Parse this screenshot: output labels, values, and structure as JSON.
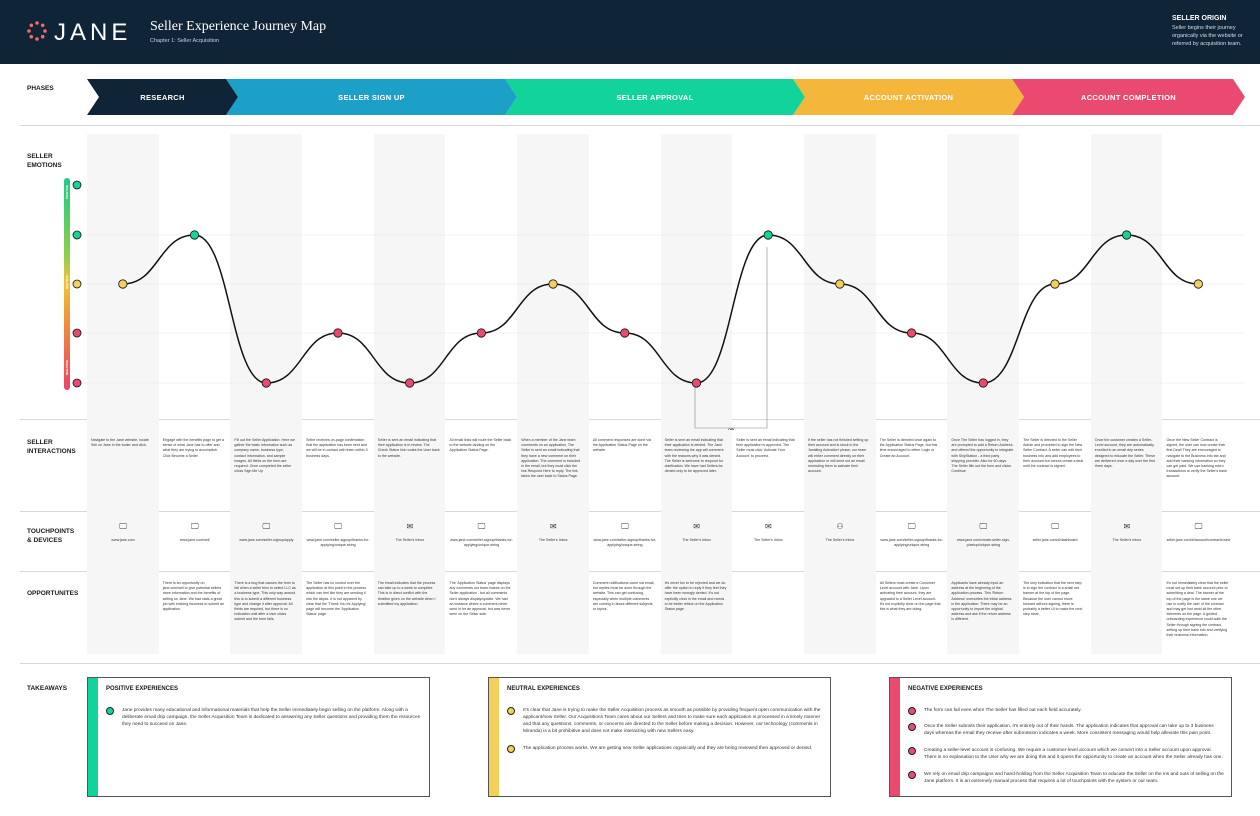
{
  "header": {
    "logo_text": "JANE",
    "title": "Seller Experience Journey Map",
    "subtitle": "Chapter 1: Seller Acquisition",
    "origin_title": "SELLER ORIGIN",
    "origin_text": "Seller begins their journey organically via the website or referred by acquisition team."
  },
  "row_labels": {
    "phases": "PHASES",
    "emotions": "SELLER\nEMOTIONS",
    "interactions": "SELLER\nINTERACTIONS",
    "touchpoints": "TOUCHPOINTS\n& DEVICES",
    "opportunities": "OPPORTUNITES",
    "takeaways": "TAKEAWAYS"
  },
  "phases": [
    {
      "label": "RESEARCH",
      "color": "#0f2437"
    },
    {
      "label": "SELLER SIGN UP",
      "color": "#1da0c8"
    },
    {
      "label": "SELLER APPROVAL",
      "color": "#12d39a"
    },
    {
      "label": "ACCOUNT ACTIVATION",
      "color": "#f5b73b"
    },
    {
      "label": "ACCOUNT COMPLETION",
      "color": "#ea4a70"
    }
  ],
  "emotion_scale": {
    "top": "POSITIVE",
    "middle": "NEUTRAL",
    "bottom": "NEGATIVE"
  },
  "emotions": [
    0,
    1,
    -2,
    -1,
    -2,
    -1,
    0,
    -1,
    -2,
    1,
    0,
    -1,
    -2,
    0,
    1,
    0
  ],
  "or_label": "OR",
  "interactions": [
    "Navigate to the Jane website, locate Sell on Jane in the footer and click.",
    "Engage with the benefits page to get a sense of what Jane has to offer and what they are trying to accomplish. Click Become a Seller",
    "Fill out the Seller Application. Here we gather the basic information such as company name, business type, contact information, and sample images. All fields on the form are required. Once completed the seller clicks Sign Me Up",
    "Seller receives on-page confirmation that the application has been sent and we will be in contact with them within 3 business days.",
    "Seller is sent an email indicating that their application is in review. The Check Status link routes the User back to the website.",
    "All email links will route the Seller back to the website landing on the Application Status Page.",
    "When a member of the Jane team comments on an application, The Seller is sent an email indicating that they have a new comment on their application. The comment is included in the email, but they must click the link Respond Here to reply. The link takes the user back to Status Page.",
    "All comment responses are done via the Application Status Page on the website.",
    "Seller is sent an email indicating that their application is denied. The Jane team reviewing the app will comment with the reasons why it was denied. The Seller is welcome to respond for clarification. We have had Sellers be denied only to be approved later.",
    "Seller is sent an email indicating that their application is approved. The Seller must click 'Activate Your Account' to proceed.",
    "If the seller has not finished setting up their account and is stuck in the 'Awaiting Activation' phase, our team will either comment directly on their application or will send out an email reminding them to activate their account.",
    "The Seller is directed once again to the Application Status Page, but this time encouraged to either Login or Create an Account.",
    "Once The Seller has logged in, they are prompted to add a Return Address and offered the opportunity to integrate with ShipStation - a third party shipping provider. Also for 60 days. The Seller fills out the form and clicks Continue",
    "The Seller is directed to the Seller Admin and prompted to sign the New Seller Contract. A seller can edit their business info and add employees to their account but cannot create a deal until the contract is signed.",
    "Once the customer creates a Seller-Level account, they are automatically enrolled in an email drip series designed to educate the Seller. These are delivered once a day over the first three days.",
    "Once the New Seller Contract is signed, the user can now create their first Deal! They are encouraged to navigate to the Business Info tab and add their banking information so they can get paid. We use banking micro transactions to verify the Seller's bank account."
  ],
  "touchpoints": [
    {
      "icon": "computer-icon",
      "url": "www.jane.com"
    },
    {
      "icon": "computer-icon",
      "url": "www.jane.com/sell"
    },
    {
      "icon": "computer-icon",
      "url": "www.jane.com/seller-signup/apply"
    },
    {
      "icon": "computer-icon",
      "url": "www.jane.com/seller-signup/thanks-for-applying/unique-string"
    },
    {
      "icon": "mail-icon",
      "url": "The Seller's Inbox"
    },
    {
      "icon": "computer-icon",
      "url": "www.jane.com/seller-signup/thanks-for-applying/unique-string"
    },
    {
      "icon": "mail-icon",
      "url": "The Seller's Inbox"
    },
    {
      "icon": "computer-icon",
      "url": "www.jane.com/seller-signup/thanks-for-applying/unique-string"
    },
    {
      "icon": "mail-icon",
      "url": "The Seller's Inbox"
    },
    {
      "icon": "mail-icon",
      "url": "The Seller's Inbox"
    },
    {
      "icon": "person-icon",
      "url": "The Seller's Inbox"
    },
    {
      "icon": "computer-icon",
      "url": "www.jane.com/seller-signup/thanks-for-applying/unique-string"
    },
    {
      "icon": "computer-icon",
      "url": "www.jane.com/create-seller-sign-p/setup/unique-string"
    },
    {
      "icon": "computer-icon",
      "url": "seller.jane.com/#/dashboard"
    },
    {
      "icon": "mail-icon",
      "url": "The Seller's Inbox"
    },
    {
      "icon": "computer-icon",
      "url": "seller.jane.com/#/account/contracts/new"
    }
  ],
  "opportunities": [
    "",
    "There is an opportunity on jane.com/sell to give potential sellers more information and the benefits of selling on Jane. We had stats a great job with enticing business to submit an application.",
    "There is a bug that causes the form to fail when a seller tries to select LLC as a business type. This only way around this is to submit a different business type and change it after approval. All fields are required, but there is no indication until after a user clicks submit and the form fails.",
    "The Seller has no control over the application at this point in the process which can feel like they are sending it into the abyss. It is not apparent by clear that the 'Thank You for Applying' page will become the 'Application Status' page.",
    "The email indicates that the process can take up to a week to complete. This is in direct conflict with the timeline given on the website when I submitted my application.",
    "The 'Application Status' page displays any comments our team makes on the Seller application - but all comments don't always display/update. We had an instance where a comment never went in for an approval, but was never seen on the Seller side.",
    "",
    "Comment notifications come via email, but replies must be done through the website. This can get confusing, especially when multiple comments are coming in about different subjects or topics.",
    "It's never fun to be rejected and we do offer the option to reply if they feel they have been wrongly denied. It's not explicitly clear in the email and needs to be better reflect on the Application Status page.",
    "",
    "",
    "All Sellers must create a Customer Level account with Jane. Upon activating their account, they are upgraded to a Seller Level account. It's not explicitly clear on the page that this is what they are doing.",
    "Applicants have already input an address at the beginning of the application process. This 'Return Address' overwrites the initial address in the application. There may be an opportunity to import the original address and ask if the return address is different.",
    "The only indication that the next step is to sign the contract is a small red banner at the top of the page. Because the user cannot move forward without signing, there is probably a better UI to make the next step clear.",
    "",
    "It's not immediately clear that the seller must set up their bank account prior to submitting a deal. The banner at the top of the page is the same one we use to notify the user of the contract and may get lost amid all the other elements on the page. A guided onboarding experience could walk the Seller through signing the contract, setting up their bank info and verifying their business information."
  ],
  "takeaways": {
    "positive": {
      "title": "POSITIVE EXPERIENCES",
      "color": "#12d39a",
      "items": [
        {
          "icon": "happy-icon",
          "text": "Jane provides many educational and informational materials that help the Seller immediately begin selling on the platform. Along with a deliberate email drip campaign, the Seller Acquisition Team is dedicated to answering any Seller questions and providing them the resources they need to succeed on Jane."
        }
      ]
    },
    "neutral": {
      "title": "NEUTRAL EXPERIENCES",
      "color": "#f5cf5b",
      "items": [
        {
          "icon": "neutral-icon",
          "text": "It's clear that Jane is trying to make the Seller Acquisition process as smooth as possible by providing frequent open communication with the applicant/new Seller. Our Acquisitions Team cares about our Sellers and tries to make sure each application is processed in a timely manner and that any questions, comments, or concerns are directed to the Seller before making a decision. However, our technology (comments in Miranda) is a bit prohibitive and does not make interacting with new Sellers easy."
        },
        {
          "icon": "neutral-icon",
          "text": "The application process works. We are getting new Seller applications organically and they are being reviewed then approved or denied."
        }
      ]
    },
    "negative": {
      "title": "NEGATIVE EXPERIENCES",
      "color": "#ea4a70",
      "items": [
        {
          "icon": "sad-icon",
          "text": "The form can fail even when The Seller has filled out each field accurately."
        },
        {
          "icon": "sad-icon",
          "text": "Once the Seller submits their application, it's entirely out of their hands. The application indicates that approval can take up to 3 business days whereas the email they receive after submission indicates a week. More consistent messaging would help alleviate this pain point."
        },
        {
          "icon": "sad-icon",
          "text": "Creating a seller-level account is confusing. We require a customer-level account which we convert into a Seller account upon approval. There is no explanation to the User why we are doing this and it opens the opportunity to create an account when the Seller already has one."
        },
        {
          "icon": "sad-icon",
          "text": "We rely on email drip campaigns and hand-holding from the Seller Acquisition Team to educate the Seller on the ins and outs of selling on the Jane platform. It is an extremely manual process that requires a lot of touchpoints with the system or our team."
        }
      ]
    }
  }
}
